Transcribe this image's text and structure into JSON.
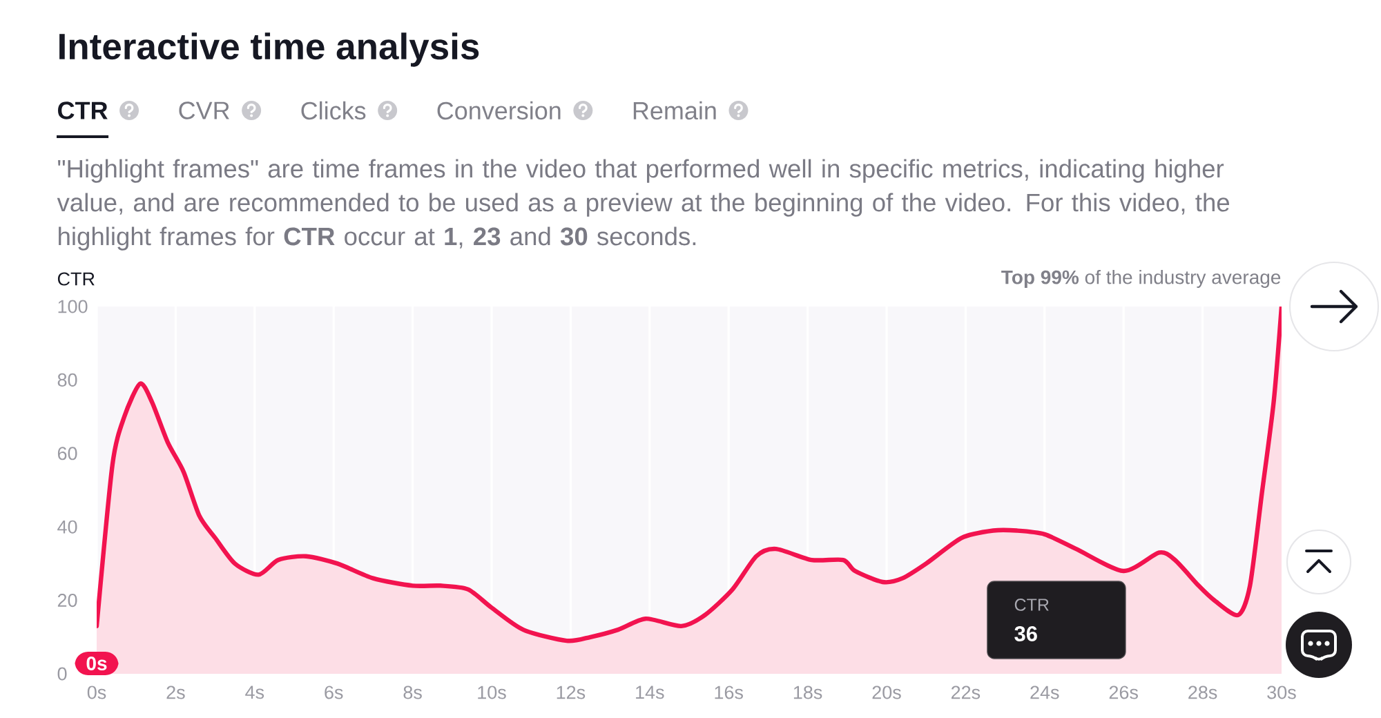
{
  "chart_data": {
    "type": "area",
    "title": "Interactive time analysis",
    "subtitle": "\"Highlight frames\" are time frames in the video that performed well in specific metrics, indicating higher value, and are recommended to be used as a preview at the beginning of the video. For this video, the highlight frames for **CTR** occur at **1**, **23** and **30** seconds.",
    "ylabel": "CTR",
    "x": [
      0,
      0.4,
      0.7,
      1.1,
      1.4,
      1.8,
      2.2,
      2.6,
      3.0,
      3.5,
      4.1,
      4.6,
      5.3,
      6.1,
      7.0,
      8.0,
      8.7,
      9.4,
      10.0,
      10.8,
      11.9,
      12.5,
      13.2,
      13.9,
      14.8,
      15.4,
      16.1,
      16.7,
      17.2,
      18.1,
      18.9,
      19.2,
      19.9,
      20.4,
      21.0,
      21.9,
      22.7,
      23.3,
      24.0,
      24.8,
      26.0,
      26.9,
      27.3,
      27.9,
      28.3,
      28.9,
      29.2,
      29.5,
      29.8,
      30
    ],
    "values": [
      13,
      57,
      70,
      79,
      74,
      63,
      55,
      43,
      37,
      30,
      27,
      31,
      32,
      30,
      26,
      24,
      24,
      23,
      18,
      12,
      9,
      10,
      12,
      15,
      13,
      16,
      23,
      32,
      34,
      31,
      31,
      28,
      25,
      26,
      30,
      37,
      39,
      39,
      38,
      34,
      28,
      33,
      31,
      24,
      20,
      16,
      24,
      49,
      74,
      100
    ],
    "color": "#f2134f",
    "xlim": [
      0,
      30
    ],
    "ylim": [
      0,
      100
    ],
    "xticks": [
      {
        "value": 0,
        "label": "0s"
      },
      {
        "value": 2,
        "label": "2s"
      },
      {
        "value": 4,
        "label": "4s"
      },
      {
        "value": 6,
        "label": "6s"
      },
      {
        "value": 8,
        "label": "8s"
      },
      {
        "value": 10,
        "label": "10s"
      },
      {
        "value": 12,
        "label": "12s"
      },
      {
        "value": 14,
        "label": "14s"
      },
      {
        "value": 16,
        "label": "16s"
      },
      {
        "value": 18,
        "label": "18s"
      },
      {
        "value": 20,
        "label": "20s"
      },
      {
        "value": 22,
        "label": "22s"
      },
      {
        "value": 24,
        "label": "24s"
      },
      {
        "value": 26,
        "label": "26s"
      },
      {
        "value": 28,
        "label": "28s"
      },
      {
        "value": 30,
        "label": "30s"
      }
    ],
    "yticks": [
      0,
      20,
      40,
      60,
      80,
      100
    ],
    "grid": "x",
    "annotations": [
      "CTR",
      "CVR",
      "Clicks",
      "Conversion",
      "Remain",
      "**Top 99%** of the industry average",
      "CTR",
      "36",
      {
        "text": "0s",
        "x": 0
      }
    ]
  }
}
